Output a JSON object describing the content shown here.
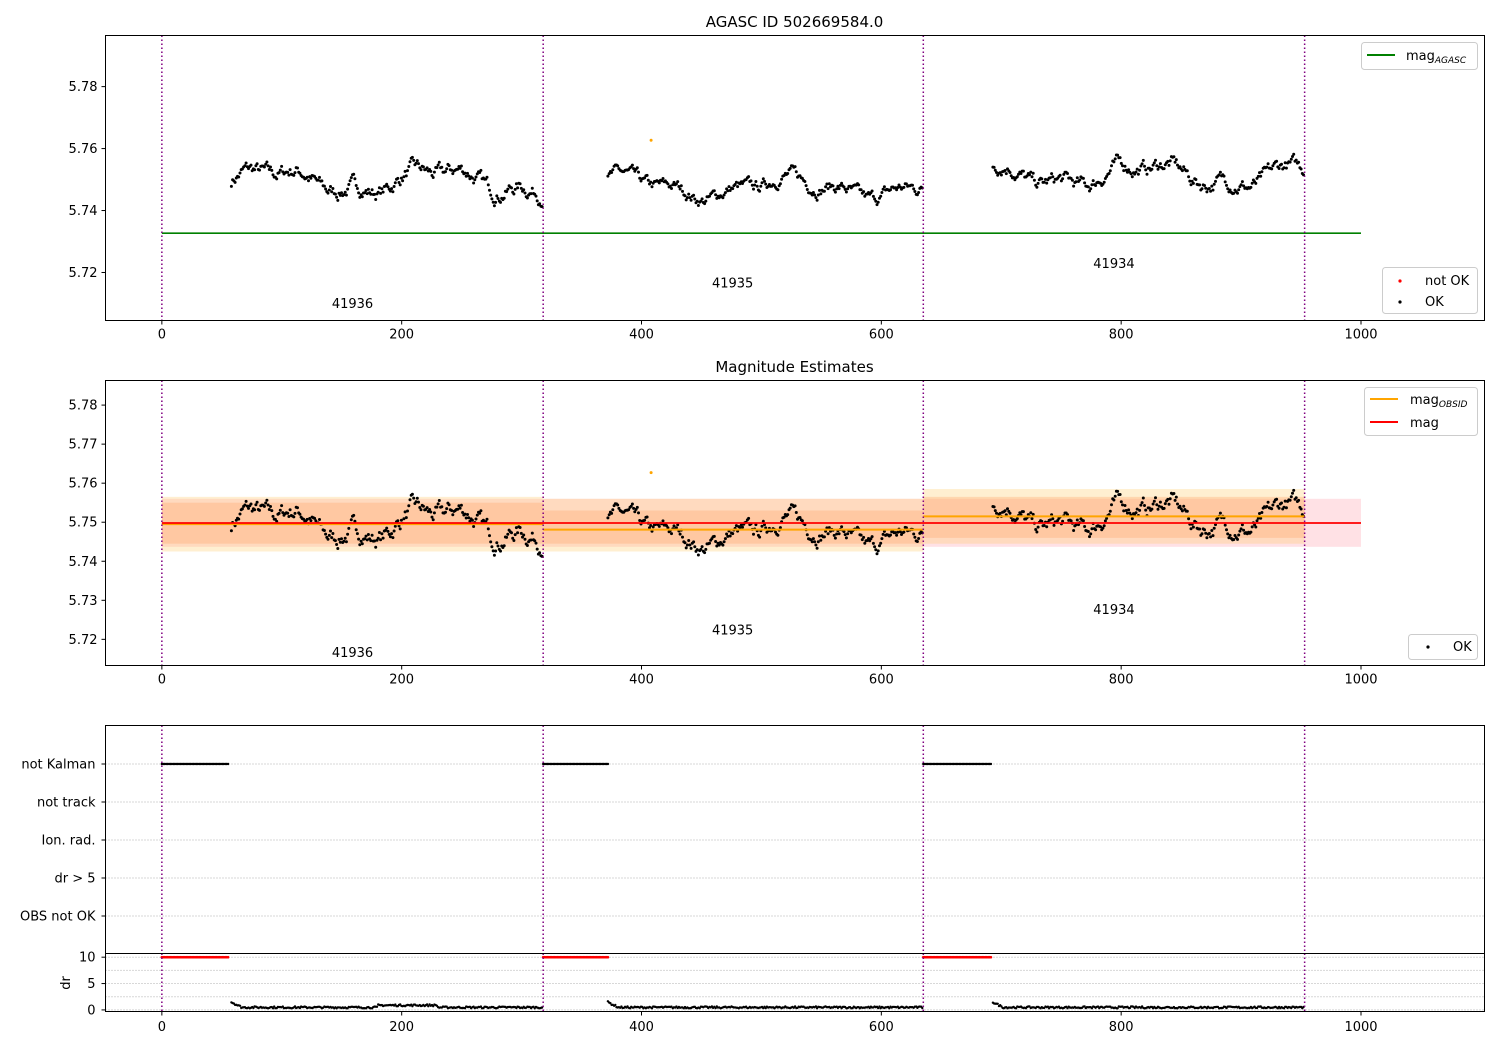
{
  "chart_data": [
    {
      "type": "scatter",
      "title": "AGASC ID 502669584.0",
      "xlim": [
        -47,
        1103
      ],
      "ylim": [
        5.7045,
        5.7965
      ],
      "xticks": [
        0,
        200,
        400,
        600,
        800,
        1000
      ],
      "yticks": [
        5.72,
        5.74,
        5.76,
        5.78
      ],
      "obsid_boundaries": [
        0,
        318,
        635,
        953
      ],
      "obsid_labels": [
        {
          "text": "41936",
          "x": 159,
          "y": 5.7085
        },
        {
          "text": "41935",
          "x": 476,
          "y": 5.7151
        },
        {
          "text": "41934",
          "x": 794,
          "y": 5.7215
        }
      ],
      "mag_agasc": {
        "value": 5.7327,
        "x": [
          0,
          1000
        ],
        "color": "#008000"
      },
      "series_ranges": [
        {
          "x": [
            58,
            318
          ],
          "mean": 5.7495,
          "amp": 0.0115
        },
        {
          "x": [
            372,
            635
          ],
          "mean": 5.7475,
          "amp": 0.0095
        },
        {
          "x": [
            693,
            953
          ],
          "mean": 5.7515,
          "amp": 0.011
        }
      ],
      "not_ok_points": [
        {
          "x": 408,
          "y": 5.7627
        }
      ],
      "legends": {
        "upper": [
          "mag_AGASC"
        ],
        "lower": [
          "not OK",
          "OK"
        ]
      }
    },
    {
      "type": "scatter",
      "title": "Magnitude Estimates",
      "xlim": [
        -47,
        1103
      ],
      "ylim": [
        5.7133,
        5.7863
      ],
      "xticks": [
        0,
        200,
        400,
        600,
        800,
        1000
      ],
      "yticks": [
        5.72,
        5.73,
        5.74,
        5.75,
        5.76,
        5.77,
        5.78
      ],
      "obsid_labels": [
        {
          "text": "41936",
          "x": 159,
          "y": 5.7155
        },
        {
          "text": "41935",
          "x": 476,
          "y": 5.7213
        },
        {
          "text": "41934",
          "x": 794,
          "y": 5.7265
        }
      ],
      "mag": {
        "value": 5.7498,
        "band": [
          5.7437,
          5.756
        ],
        "x": [
          0,
          1000
        ],
        "color": "#ff0000"
      },
      "mag_obsid": [
        {
          "x": [
            0,
            318
          ],
          "value": 5.7495,
          "band": [
            5.7425,
            5.7565
          ],
          "inner": [
            5.7445,
            5.755
          ]
        },
        {
          "x": [
            318,
            635
          ],
          "value": 5.7481,
          "band": [
            5.7425,
            5.756
          ],
          "inner": [
            5.7445,
            5.753
          ]
        },
        {
          "x": [
            635,
            953
          ],
          "value": 5.7515,
          "band": [
            5.7445,
            5.7585
          ],
          "inner": [
            5.746,
            5.7565
          ]
        }
      ],
      "legends": {
        "upper": [
          "mag_OBSID",
          "mag"
        ],
        "lower": [
          "OK"
        ]
      }
    },
    {
      "type": "scatter",
      "title": "",
      "xlim": [
        -47,
        1103
      ],
      "flag_rows": [
        "not Kalman",
        "not track",
        "Ion. rad.",
        "dr > 5",
        "OBS not OK"
      ],
      "not_kalman_ranges": [
        [
          0,
          56
        ],
        [
          318,
          372
        ],
        [
          635,
          692
        ]
      ],
      "ylabel": "dr",
      "dr_ylim": [
        -0.3,
        10.7
      ],
      "dr_yticks": [
        0,
        5,
        10
      ]
    }
  ],
  "text": {
    "superscript_agasc": "AGASC",
    "superscript_obsid": "OBSID",
    "mag": "mag"
  }
}
